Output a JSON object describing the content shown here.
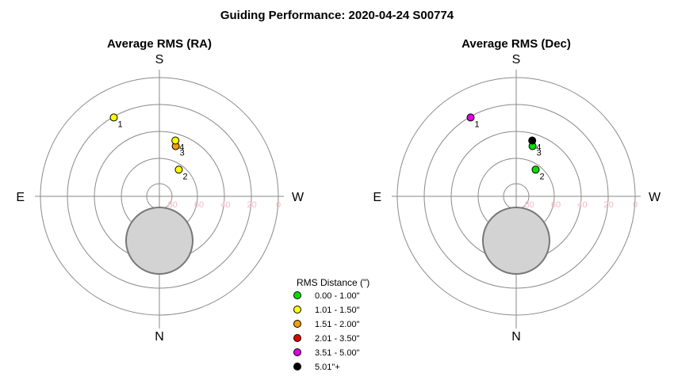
{
  "title": "Guiding Performance: 2020-04-24 S00774",
  "compass": {
    "top": "S",
    "bottom": "N",
    "left": "E",
    "right": "W"
  },
  "colors": {
    "ring": "#8a8a8a",
    "axis": "#8a8a8a",
    "tick": "#f4b8c0",
    "zenith_fill": "#d3d3d3",
    "zenith_stroke": "#777777"
  },
  "legend": {
    "title": "RMS Distance (\")",
    "items": [
      {
        "label": "0.00 - 1.00\"",
        "color": "#00e000"
      },
      {
        "label": "1.01 - 1.50\"",
        "color": "#ffff00"
      },
      {
        "label": "1.51 - 2.00\"",
        "color": "#f0a000"
      },
      {
        "label": "2.01 - 3.50\"",
        "color": "#e00000"
      },
      {
        "label": "3.51 - 5.00\"",
        "color": "#e000e0"
      },
      {
        "label": "5.01\"+",
        "color": "#000000"
      }
    ]
  },
  "chart_data": [
    {
      "type": "scatter",
      "subtitle": "Average RMS (RA)",
      "polar": true,
      "radial_axis": {
        "unit": "altitude",
        "ticks": [
          80,
          60,
          40,
          20,
          0
        ],
        "outer": 0,
        "center": 90
      },
      "points": [
        {
          "label": "1",
          "azimuth": 210,
          "altitude": 21,
          "color": "#ffff00"
        },
        {
          "label": "2",
          "azimuth": 144,
          "altitude": 65,
          "color": "#ffff00"
        },
        {
          "label": "3",
          "azimuth": 162,
          "altitude": 50,
          "color": "#f0a000"
        },
        {
          "label": "4",
          "azimuth": 164,
          "altitude": 46,
          "color": "#ffff00"
        }
      ]
    },
    {
      "type": "scatter",
      "subtitle": "Average RMS (Dec)",
      "polar": true,
      "radial_axis": {
        "unit": "altitude",
        "ticks": [
          80,
          60,
          40,
          20,
          0
        ],
        "outer": 0,
        "center": 90
      },
      "points": [
        {
          "label": "1",
          "azimuth": 210,
          "altitude": 21,
          "color": "#e000e0"
        },
        {
          "label": "2",
          "azimuth": 144,
          "altitude": 65,
          "color": "#00e000"
        },
        {
          "label": "3",
          "azimuth": 162,
          "altitude": 50,
          "color": "#00e000"
        },
        {
          "label": "4",
          "azimuth": 164,
          "altitude": 46,
          "color": "#000000"
        }
      ]
    }
  ]
}
